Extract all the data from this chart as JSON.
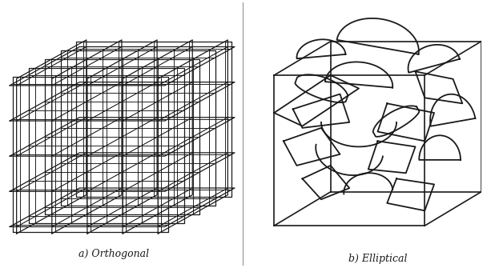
{
  "line_color": "#1a1a1a",
  "label_a": "a) Orthogonal",
  "label_b": "b) Elliptical",
  "label_fontsize": 9,
  "fig_width": 6.13,
  "fig_height": 3.45,
  "dpi": 100
}
